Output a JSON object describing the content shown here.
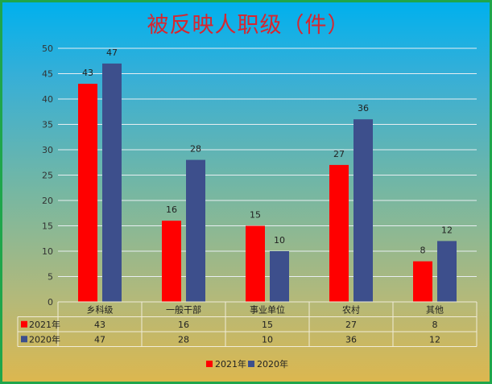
{
  "chart_data": {
    "type": "bar",
    "title": "被反映人职级（件）",
    "categories": [
      "乡科级",
      "一般干部",
      "事业单位",
      "农村",
      "其他"
    ],
    "series": [
      {
        "name": "2021年",
        "color": "#ff0000",
        "values": [
          43,
          16,
          15,
          27,
          8
        ]
      },
      {
        "name": "2020年",
        "color": "#3d4f8c",
        "values": [
          47,
          28,
          10,
          36,
          12
        ]
      }
    ],
    "ylim": [
      0,
      50
    ],
    "yticks": [
      0,
      5,
      10,
      15,
      20,
      25,
      30,
      35,
      40,
      45,
      50
    ],
    "grid": true,
    "legend_position": "bottom",
    "data_table": true
  },
  "colors": {
    "title": "#d7262f",
    "border": "#1fa64b",
    "background_top": "#00b0ee",
    "background_bottom": "#dcb74f"
  }
}
